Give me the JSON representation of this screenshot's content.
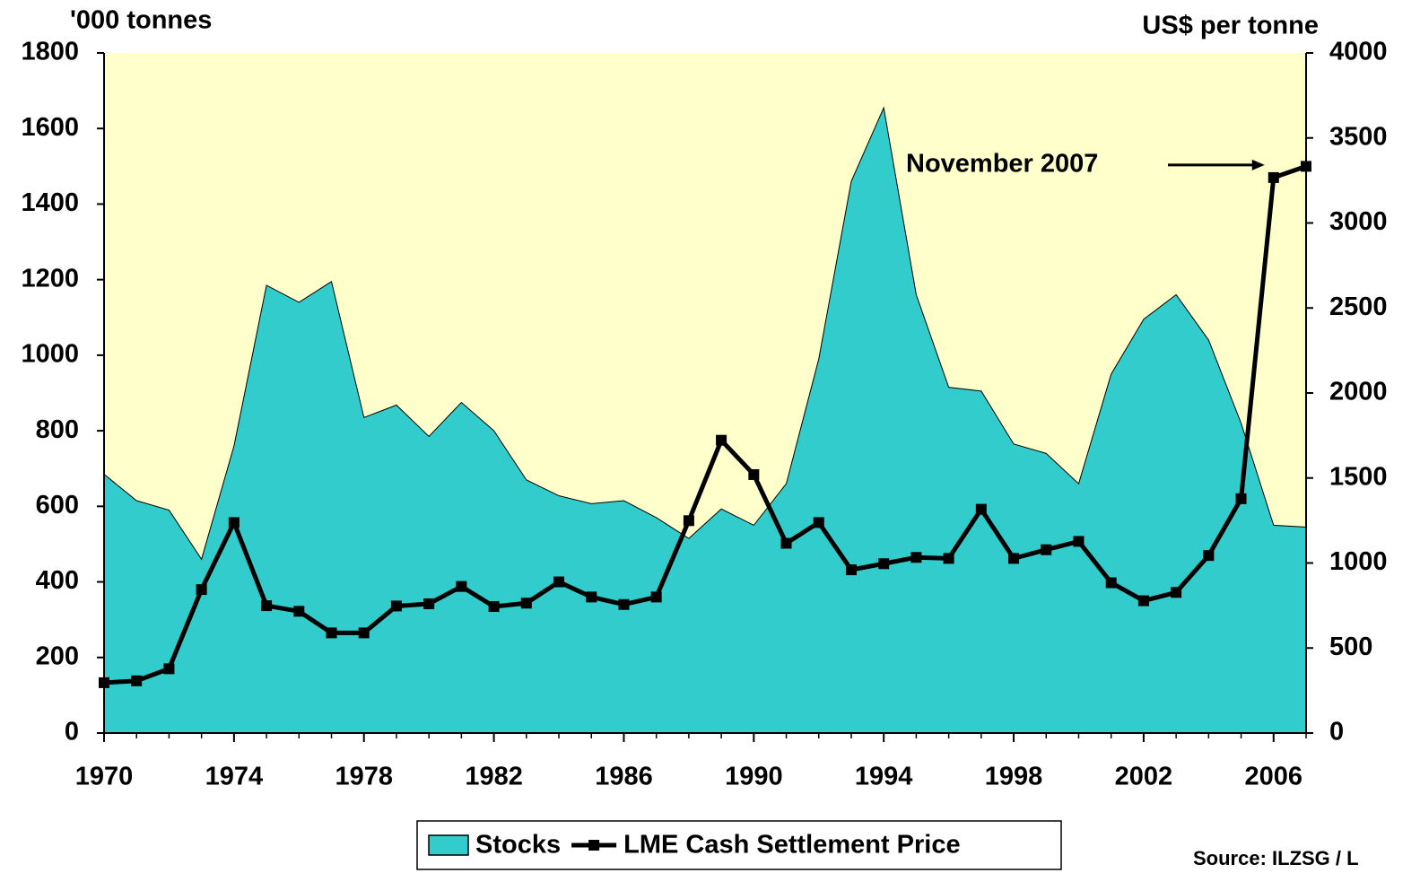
{
  "chart_data": {
    "type": "combo",
    "y_label": "'000 tonnes",
    "y2_label": "US$ per tonne",
    "x": [
      1970,
      1971,
      1972,
      1973,
      1974,
      1975,
      1976,
      1977,
      1978,
      1979,
      1980,
      1981,
      1982,
      1983,
      1984,
      1985,
      1986,
      1987,
      1988,
      1989,
      1990,
      1991,
      1992,
      1993,
      1994,
      1995,
      1996,
      1997,
      1998,
      1999,
      2000,
      2001,
      2002,
      2003,
      2004,
      2005,
      2006,
      2007
    ],
    "xlim": [
      1970,
      2007
    ],
    "xticks": [
      1970,
      1974,
      1978,
      1982,
      1986,
      1990,
      1994,
      1998,
      2002,
      2006
    ],
    "ylim": [
      0,
      1800
    ],
    "yticks": [
      0,
      200,
      400,
      600,
      800,
      1000,
      1200,
      1400,
      1600,
      1800
    ],
    "y2lim": [
      0,
      4000
    ],
    "y2ticks": [
      0,
      500,
      1000,
      1500,
      2000,
      2500,
      3000,
      3500,
      4000
    ],
    "plot_background": "#ffffcc",
    "series": [
      {
        "name": "Stocks",
        "type": "area",
        "color": "#33cccc",
        "values": [
          685,
          615,
          590,
          460,
          760,
          1185,
          1140,
          1195,
          835,
          868,
          785,
          875,
          800,
          670,
          628,
          607,
          615,
          570,
          515,
          593,
          550,
          660,
          990,
          1460,
          1655,
          1160,
          915,
          905,
          765,
          740,
          660,
          950,
          1095,
          1160,
          1040,
          820,
          550,
          545
        ]
      },
      {
        "name": "LME Cash Settlement Price",
        "type": "line",
        "axis": "y2",
        "color": "#000000",
        "values": [
          296,
          307,
          378,
          844,
          1238,
          749,
          716,
          589,
          589,
          747,
          760,
          862,
          744,
          764,
          889,
          800,
          756,
          800,
          1249,
          1722,
          1520,
          1116,
          1238,
          960,
          996,
          1033,
          1027,
          1316,
          1027,
          1078,
          1127,
          884,
          778,
          827,
          1044,
          1378,
          3267,
          3333
        ]
      }
    ],
    "annotations": [
      {
        "text": "November 2007"
      }
    ],
    "source": "Source: ILZSG / L"
  }
}
